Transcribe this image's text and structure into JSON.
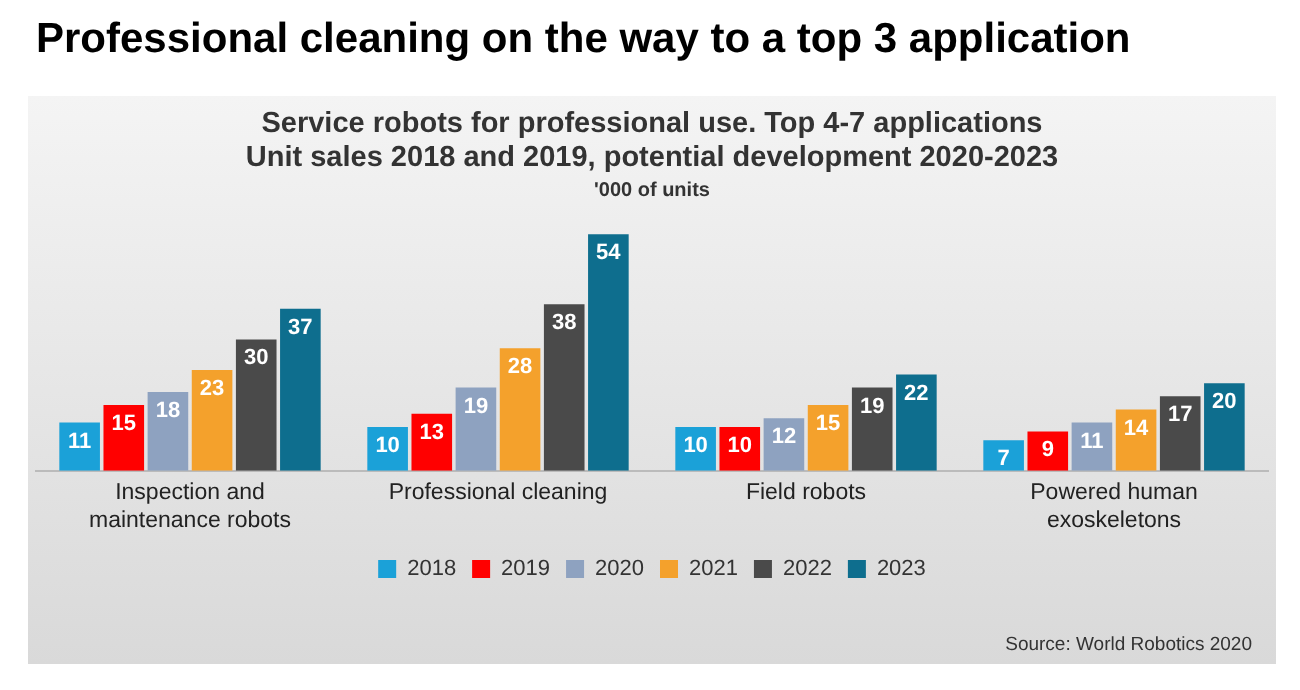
{
  "chart_data": {
    "type": "bar",
    "title": "Professional cleaning on the way to a top 3 application",
    "subtitle": "Service robots for professional use. Top 4-7 applications\nUnit sales 2018 and 2019, potential development 2020-2023",
    "ylabel": "'000 of units",
    "categories": [
      "Inspection and maintenance robots",
      "Professional cleaning",
      "Field robots",
      "Powered human exoskeletons"
    ],
    "series": [
      {
        "name": "2018",
        "color": "#1ba1d8",
        "values": [
          11,
          10,
          10,
          7
        ]
      },
      {
        "name": "2019",
        "color": "#ff0000",
        "values": [
          15,
          13,
          10,
          9
        ]
      },
      {
        "name": "2020",
        "color": "#8ea2c0",
        "values": [
          18,
          19,
          12,
          11
        ]
      },
      {
        "name": "2021",
        "color": "#f4a12c",
        "values": [
          23,
          28,
          15,
          14
        ]
      },
      {
        "name": "2022",
        "color": "#4a4a4a",
        "values": [
          30,
          38,
          19,
          17
        ]
      },
      {
        "name": "2023",
        "color": "#0e6e8e",
        "values": [
          37,
          54,
          22,
          20
        ]
      }
    ],
    "data_labels": true,
    "grid": false,
    "legend": "bottom",
    "annotations": [
      "Source: World Robotics 2020"
    ]
  }
}
